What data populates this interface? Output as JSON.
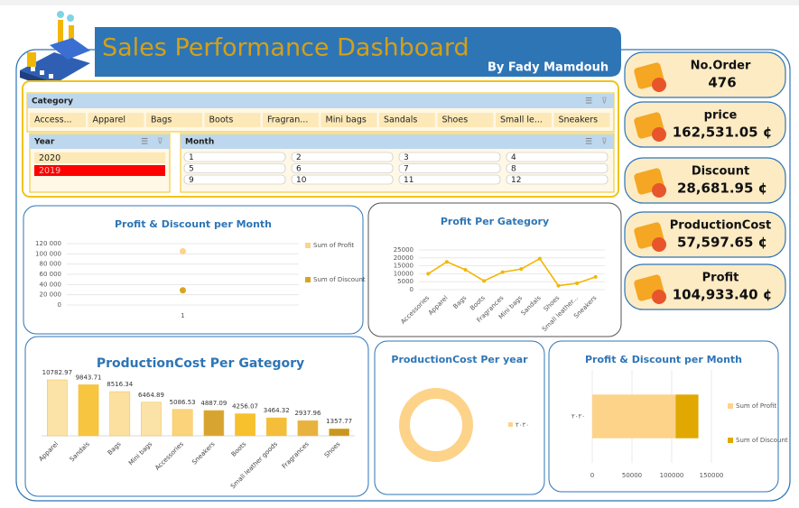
{
  "header": {
    "title": "Sales Performance Dashboard",
    "author": "By Fady Mamdouh"
  },
  "slicers": {
    "category": {
      "title": "Category",
      "items": [
        "Access...",
        "Apparel",
        "Bags",
        "Boots",
        "Fragran...",
        "Mini bags",
        "Sandals",
        "Shoes",
        "Small le...",
        "Sneakers"
      ]
    },
    "year": {
      "title": "Year",
      "items": [
        "2020",
        "2019"
      ],
      "selected": 1,
      "selected_color": "#ff0000"
    },
    "month": {
      "title": "Month",
      "items": [
        "1",
        "2",
        "3",
        "4",
        "5",
        "6",
        "7",
        "8",
        "9",
        "10",
        "11",
        "12"
      ]
    }
  },
  "kpis": [
    {
      "label": "No.Order",
      "value": "476"
    },
    {
      "label": "price",
      "value": "162,531.05 ¢"
    },
    {
      "label": "Discount",
      "value": "28,681.95 ¢"
    },
    {
      "label": "ProductionCost",
      "value": "57,597.65 ¢"
    },
    {
      "label": "Profit",
      "value": "104,933.40 ¢"
    }
  ],
  "chart_data": [
    {
      "type": "line",
      "title": "Profit & Discount per Month",
      "categories": [
        "1"
      ],
      "series": [
        {
          "name": "Sum of Profit",
          "color": "#fdd38a",
          "values": [
            104933.4
          ]
        },
        {
          "name": "Sum of Discount",
          "color": "#d9a520",
          "values": [
            28681.95
          ]
        }
      ],
      "ylim": [
        0,
        120000
      ],
      "yticks": [
        0,
        {
          "value": 20000,
          "label": "20 000"
        },
        {
          "value": 40000,
          "label": "40 000"
        },
        {
          "value": 60000,
          "label": "60 000"
        },
        {
          "value": 80000,
          "label": "80 000"
        },
        {
          "value": 100000,
          "label": "100 000"
        },
        {
          "value": 120000,
          "label": "120 000"
        }
      ],
      "grid": true,
      "markers": true,
      "legend": "right"
    },
    {
      "type": "line",
      "title": "Profit Per Gategory",
      "categories": [
        "Accessories",
        "Apparel",
        "Bags",
        "Boots",
        "Fragrances",
        "Mini bags",
        "Sandals",
        "Shoes",
        "Small leather...",
        "Sneakers"
      ],
      "series": [
        {
          "name": "Profit",
          "color": "#f2b705",
          "values": [
            10000,
            17500,
            12500,
            5500,
            11000,
            13000,
            19500,
            2500,
            4000,
            8000
          ]
        }
      ],
      "ylim": [
        0,
        25000
      ],
      "yticks": [
        0,
        5000,
        10000,
        15000,
        20000,
        25000
      ],
      "grid": true,
      "markers": true,
      "legend": "none"
    },
    {
      "type": "bar",
      "title": "ProductionCost Per Gategory",
      "categories": [
        "Apparel",
        "Sandals",
        "Bags",
        "Mini bags",
        "Accessories",
        "Sneakers",
        "Boots",
        "Small leather goods",
        "Fragrances",
        "Shoes"
      ],
      "values": [
        10782.97,
        9843.71,
        8516.34,
        6464.89,
        5086.53,
        4887.09,
        4256.07,
        3464.32,
        2937.96,
        1357.77
      ],
      "colors": [
        "#fbe3a8",
        "#f7c540",
        "#fbe0a0",
        "#fbe2a6",
        "#fad37a",
        "#d8a431",
        "#f7c12e",
        "#f4be3a",
        "#e8b23e",
        "#c9961e"
      ]
    },
    {
      "type": "donut",
      "title": "ProductionCost Per year",
      "categories": [
        "٢٠٢٠"
      ],
      "values": [
        57597.65
      ],
      "colors": [
        "#fdd38a"
      ],
      "legend": "right"
    },
    {
      "type": "hbar",
      "title": "Profit & Discount per Month",
      "stacked": true,
      "categories": [
        "٢٠٢٠"
      ],
      "series": [
        {
          "name": "Sum of Profit",
          "color": "#fdd38a",
          "values": [
            104933.4
          ]
        },
        {
          "name": "Sum of Discount",
          "color": "#e0a800",
          "values": [
            28681.95
          ]
        }
      ],
      "xlim": [
        0,
        150000
      ],
      "xticks": [
        0,
        50000,
        100000,
        150000
      ],
      "grid": true,
      "legend": "right"
    }
  ]
}
